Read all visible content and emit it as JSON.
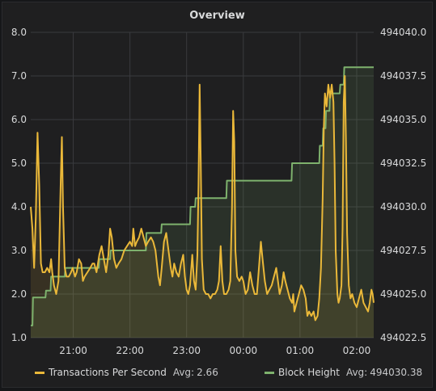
{
  "panel": {
    "title": "Overview"
  },
  "colors": {
    "tps": "#eab839",
    "block": "#7eb26d",
    "grid": "#3a3b3e",
    "background": "#1f1f20"
  },
  "legend": {
    "avg_label": "Avg:",
    "items": [
      {
        "name": "Transactions Per Second",
        "avg": "2.66",
        "color": "#eab839"
      },
      {
        "name": "Block Height",
        "avg": "494030.38",
        "color": "#7eb26d"
      }
    ]
  },
  "chart_data": {
    "type": "line",
    "title": "Overview",
    "x_domain_hours": [
      20.25,
      26.3
    ],
    "x_ticks": [
      {
        "label": "21:00",
        "hour": 21
      },
      {
        "label": "22:00",
        "hour": 22
      },
      {
        "label": "23:00",
        "hour": 23
      },
      {
        "label": "00:00",
        "hour": 24
      },
      {
        "label": "01:00",
        "hour": 25
      },
      {
        "label": "02:00",
        "hour": 26
      }
    ],
    "y_left": {
      "ylim": [
        1.0,
        8.0
      ],
      "ticks": [
        "1.0",
        "2.0",
        "3.0",
        "4.0",
        "5.0",
        "6.0",
        "7.0",
        "8.0"
      ]
    },
    "y_right": {
      "ylim": [
        494022.5,
        494040.0
      ],
      "ticks": [
        "494022.5",
        "494025.0",
        "494027.5",
        "494030.0",
        "494032.5",
        "494035.0",
        "494037.5",
        "494040.0"
      ]
    },
    "grid": true,
    "legend_position": "bottom",
    "series": [
      {
        "name": "Transactions Per Second",
        "axis": "left",
        "points": [
          [
            20.25,
            4.0
          ],
          [
            20.28,
            3.5
          ],
          [
            20.31,
            2.6
          ],
          [
            20.34,
            3.8
          ],
          [
            20.37,
            5.7
          ],
          [
            20.4,
            4.5
          ],
          [
            20.43,
            2.7
          ],
          [
            20.46,
            2.5
          ],
          [
            20.5,
            2.5
          ],
          [
            20.54,
            2.6
          ],
          [
            20.58,
            2.5
          ],
          [
            20.61,
            2.8
          ],
          [
            20.63,
            2.5
          ],
          [
            20.66,
            2.2
          ],
          [
            20.7,
            2.0
          ],
          [
            20.74,
            2.3
          ],
          [
            20.78,
            4.6
          ],
          [
            20.8,
            5.6
          ],
          [
            20.82,
            4.0
          ],
          [
            20.85,
            2.6
          ],
          [
            20.88,
            2.4
          ],
          [
            20.92,
            2.4
          ],
          [
            20.96,
            2.5
          ],
          [
            20.99,
            2.6
          ],
          [
            21.03,
            2.4
          ],
          [
            21.06,
            2.5
          ],
          [
            21.1,
            2.8
          ],
          [
            21.14,
            2.7
          ],
          [
            21.17,
            2.3
          ],
          [
            21.2,
            2.4
          ],
          [
            21.25,
            2.5
          ],
          [
            21.3,
            2.6
          ],
          [
            21.34,
            2.7
          ],
          [
            21.37,
            2.7
          ],
          [
            21.41,
            2.5
          ],
          [
            21.46,
            2.9
          ],
          [
            21.5,
            3.1
          ],
          [
            21.54,
            2.8
          ],
          [
            21.58,
            2.5
          ],
          [
            21.62,
            2.9
          ],
          [
            21.65,
            3.5
          ],
          [
            21.68,
            3.3
          ],
          [
            21.72,
            2.8
          ],
          [
            21.76,
            2.6
          ],
          [
            21.8,
            2.7
          ],
          [
            21.85,
            2.8
          ],
          [
            21.9,
            3.0
          ],
          [
            21.95,
            3.1
          ],
          [
            22.0,
            3.2
          ],
          [
            22.04,
            3.1
          ],
          [
            22.06,
            3.5
          ],
          [
            22.09,
            3.1
          ],
          [
            22.12,
            3.2
          ],
          [
            22.16,
            3.3
          ],
          [
            22.2,
            3.5
          ],
          [
            22.24,
            3.3
          ],
          [
            22.28,
            3.1
          ],
          [
            22.32,
            3.2
          ],
          [
            22.37,
            3.3
          ],
          [
            22.41,
            3.2
          ],
          [
            22.45,
            3.0
          ],
          [
            22.5,
            2.4
          ],
          [
            22.53,
            2.2
          ],
          [
            22.56,
            2.6
          ],
          [
            22.6,
            3.2
          ],
          [
            22.64,
            3.4
          ],
          [
            22.68,
            3.0
          ],
          [
            22.72,
            2.6
          ],
          [
            22.75,
            2.4
          ],
          [
            22.78,
            2.7
          ],
          [
            22.82,
            2.5
          ],
          [
            22.86,
            2.4
          ],
          [
            22.9,
            2.7
          ],
          [
            22.94,
            2.9
          ],
          [
            22.97,
            2.4
          ],
          [
            23.0,
            2.1
          ],
          [
            23.03,
            2.0
          ],
          [
            23.06,
            2.2
          ],
          [
            23.1,
            2.9
          ],
          [
            23.13,
            2.3
          ],
          [
            23.16,
            2.1
          ],
          [
            23.19,
            2.9
          ],
          [
            23.21,
            4.5
          ],
          [
            23.23,
            6.8
          ],
          [
            23.25,
            5.0
          ],
          [
            23.27,
            2.8
          ],
          [
            23.3,
            2.1
          ],
          [
            23.34,
            2.0
          ],
          [
            23.38,
            2.0
          ],
          [
            23.42,
            1.9
          ],
          [
            23.46,
            2.0
          ],
          [
            23.5,
            2.0
          ],
          [
            23.54,
            2.1
          ],
          [
            23.57,
            2.3
          ],
          [
            23.6,
            3.1
          ],
          [
            23.63,
            2.3
          ],
          [
            23.66,
            2.0
          ],
          [
            23.7,
            2.0
          ],
          [
            23.74,
            2.1
          ],
          [
            23.77,
            2.3
          ],
          [
            23.8,
            4.0
          ],
          [
            23.82,
            6.2
          ],
          [
            23.84,
            5.5
          ],
          [
            23.86,
            3.0
          ],
          [
            23.89,
            2.4
          ],
          [
            23.93,
            2.3
          ],
          [
            23.97,
            2.4
          ],
          [
            24.0,
            2.3
          ],
          [
            24.04,
            2.0
          ],
          [
            24.08,
            2.1
          ],
          [
            24.12,
            2.5
          ],
          [
            24.16,
            2.2
          ],
          [
            24.2,
            2.0
          ],
          [
            24.24,
            2.0
          ],
          [
            24.27,
            2.5
          ],
          [
            24.31,
            3.2
          ],
          [
            24.34,
            2.8
          ],
          [
            24.38,
            2.3
          ],
          [
            24.42,
            2.0
          ],
          [
            24.46,
            2.1
          ],
          [
            24.5,
            2.2
          ],
          [
            24.54,
            2.4
          ],
          [
            24.58,
            2.6
          ],
          [
            24.61,
            2.3
          ],
          [
            24.64,
            2.0
          ],
          [
            24.68,
            2.2
          ],
          [
            24.71,
            2.5
          ],
          [
            24.74,
            2.3
          ],
          [
            24.78,
            2.1
          ],
          [
            24.82,
            1.9
          ],
          [
            24.86,
            1.8
          ],
          [
            24.88,
            2.0
          ],
          [
            24.9,
            1.6
          ],
          [
            24.94,
            1.8
          ],
          [
            24.98,
            2.0
          ],
          [
            25.02,
            2.2
          ],
          [
            25.06,
            2.1
          ],
          [
            25.1,
            1.9
          ],
          [
            25.13,
            1.5
          ],
          [
            25.16,
            1.6
          ],
          [
            25.2,
            1.5
          ],
          [
            25.24,
            1.6
          ],
          [
            25.27,
            1.4
          ],
          [
            25.31,
            1.5
          ],
          [
            25.34,
            1.9
          ],
          [
            25.37,
            2.6
          ],
          [
            25.4,
            4.2
          ],
          [
            25.42,
            5.8
          ],
          [
            25.44,
            6.6
          ],
          [
            25.47,
            6.3
          ],
          [
            25.5,
            6.8
          ],
          [
            25.53,
            6.5
          ],
          [
            25.56,
            6.8
          ],
          [
            25.59,
            6.4
          ],
          [
            25.61,
            5.0
          ],
          [
            25.63,
            3.0
          ],
          [
            25.66,
            2.0
          ],
          [
            25.68,
            1.8
          ],
          [
            25.7,
            1.9
          ],
          [
            25.73,
            2.2
          ],
          [
            25.75,
            3.5
          ],
          [
            25.77,
            6.4
          ],
          [
            25.79,
            7.0
          ],
          [
            25.81,
            5.5
          ],
          [
            25.83,
            3.4
          ],
          [
            25.86,
            2.2
          ],
          [
            25.89,
            1.9
          ],
          [
            25.92,
            2.0
          ],
          [
            25.96,
            1.8
          ],
          [
            26.0,
            1.7
          ],
          [
            26.04,
            1.9
          ],
          [
            26.08,
            2.1
          ],
          [
            26.12,
            1.8
          ],
          [
            26.16,
            1.7
          ],
          [
            26.2,
            1.6
          ],
          [
            26.23,
            1.8
          ],
          [
            26.26,
            2.1
          ],
          [
            26.28,
            2.0
          ],
          [
            26.3,
            1.8
          ]
        ]
      },
      {
        "name": "Block Height",
        "axis": "right",
        "points": [
          [
            20.25,
            494023.2
          ],
          [
            20.28,
            494023.2
          ],
          [
            20.29,
            494024.8
          ],
          [
            20.51,
            494024.8
          ],
          [
            20.52,
            494025.2
          ],
          [
            20.6,
            494025.2
          ],
          [
            20.61,
            494026.0
          ],
          [
            20.85,
            494026.0
          ],
          [
            20.86,
            494026.5
          ],
          [
            21.45,
            494026.5
          ],
          [
            21.46,
            494027.0
          ],
          [
            21.65,
            494027.0
          ],
          [
            21.66,
            494027.5
          ],
          [
            22.28,
            494027.5
          ],
          [
            22.29,
            494028.5
          ],
          [
            22.55,
            494028.5
          ],
          [
            22.56,
            494029.0
          ],
          [
            23.06,
            494029.0
          ],
          [
            23.07,
            494030.0
          ],
          [
            23.15,
            494030.0
          ],
          [
            23.16,
            494030.5
          ],
          [
            23.7,
            494030.5
          ],
          [
            23.71,
            494031.5
          ],
          [
            24.85,
            494031.5
          ],
          [
            24.86,
            494032.5
          ],
          [
            25.34,
            494032.5
          ],
          [
            25.35,
            494033.5
          ],
          [
            25.4,
            494033.5
          ],
          [
            25.41,
            494034.5
          ],
          [
            25.45,
            494034.5
          ],
          [
            25.46,
            494035.5
          ],
          [
            25.52,
            494035.5
          ],
          [
            25.53,
            494036.5
          ],
          [
            25.7,
            494036.5
          ],
          [
            25.71,
            494037.0
          ],
          [
            25.77,
            494037.0
          ],
          [
            25.78,
            494038.0
          ],
          [
            26.3,
            494038.0
          ]
        ]
      }
    ]
  }
}
